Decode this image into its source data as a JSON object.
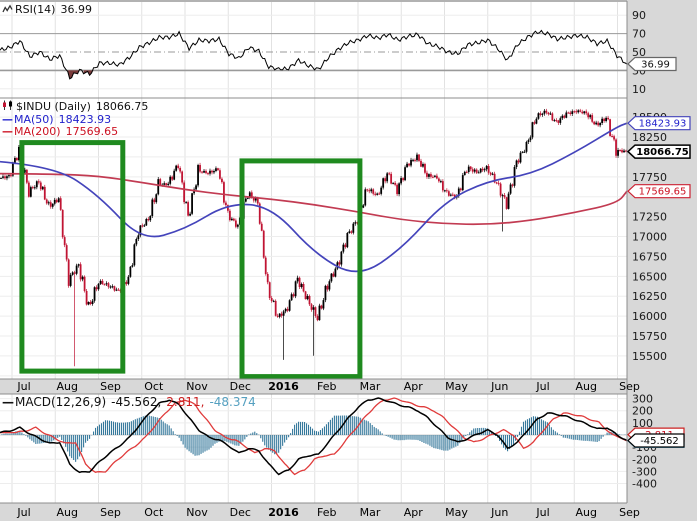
{
  "colors": {
    "page_bg": "#d8d8d8",
    "plot_bg": "#ffffff",
    "grid_v": "#e2e2e2",
    "grid_h": "#ededed",
    "grid_dark": "#9a9a9a",
    "border": "#8c8c8c",
    "candle_up": "#000000",
    "candle_down": "#c01433",
    "ma50": "#4444bb",
    "ma200": "#c23b52",
    "macd_line": "#000000",
    "macd_signal": "#e03b3b",
    "macd_hist": "#35789b",
    "rsi_line": "#000000",
    "rsi_fill": "#7a3b3b",
    "annotation_green": "#1f8a1f",
    "tick_text": "#1a1a1a"
  },
  "rsi_panel": {
    "label": "RSI(14)",
    "value": "36.99",
    "ticks": [
      90,
      70,
      50,
      30,
      10
    ],
    "overbought": 70,
    "oversold": 30,
    "midline": 50,
    "tag": "36.99"
  },
  "price_panel": {
    "title": "$INDU (Daily)",
    "last": "18066.75",
    "legend_dash": "—",
    "ma50_label": "MA(50)",
    "ma50_value": "18423.93",
    "ma200_label": "MA(200)",
    "ma200_value": "17569.65",
    "ticks": [
      18500,
      18250,
      17750,
      17250,
      17000,
      16750,
      16500,
      16250,
      16000,
      15750,
      15500
    ],
    "tags": {
      "last": "18066.75",
      "ma50": "18423.93",
      "ma200": "17569.65"
    }
  },
  "macd_panel": {
    "legend_dash": "—",
    "label": "MACD(12,26,9)",
    "line_value": "-45.562,",
    "hist_value": "2.811,",
    "signal_value": "-48.374",
    "ticks": [
      300,
      200,
      100,
      0,
      -100,
      -200,
      -300,
      -400
    ],
    "tags": {
      "line": "-45.562",
      "hist": "2.811",
      "signal": "-48.374"
    }
  },
  "x_axis": {
    "months": [
      "Jul",
      "Aug",
      "Sep",
      "Oct",
      "Nov",
      "Dec",
      "2016",
      "Feb",
      "Mar",
      "Apr",
      "May",
      "Jun",
      "Jul",
      "Aug",
      "Sep"
    ],
    "bold_label": "2016"
  },
  "chart_data": {
    "type": "candlestick+indicators",
    "symbol": "$INDU",
    "period": "Daily",
    "x_range": "Jul 2015 - Sep 2016",
    "price": {
      "ylim": [
        15210,
        18715
      ],
      "grid_step": 250,
      "last": 18066.75,
      "weekly_closes": [
        17730,
        17760,
        18086,
        17569,
        17690,
        17373,
        17477,
        16460,
        16643,
        16102,
        16433,
        16385,
        16315,
        16472,
        17084,
        17216,
        17647,
        17663,
        17910,
        17245,
        17824,
        17798,
        17848,
        17265,
        17128,
        17552,
        17425,
        16346,
        15988,
        16094,
        16466,
        16205,
        15974,
        16392,
        16640,
        17007,
        17213,
        17602,
        17516,
        17793,
        17577,
        17897,
        18004,
        17774,
        17741,
        17535,
        17501,
        17873,
        17807,
        17865,
        17675,
        17400,
        17930,
        18147,
        18517,
        18571,
        18432,
        18543,
        18576,
        18553,
        18395,
        18492,
        18085,
        18066.75
      ],
      "spike_lows": {
        "7": 15370,
        "28": 15450,
        "31": 15503,
        "50": 17063
      }
    },
    "ma50": {
      "period": 50,
      "last": 18423.93,
      "monthly": [
        17940,
        17880,
        17520,
        16940,
        17090,
        17420,
        17380,
        16780,
        16480,
        16840,
        17440,
        17700,
        17780,
        18050,
        18380,
        18423.93
      ]
    },
    "ma200": {
      "period": 200,
      "last": 17569.65,
      "monthly": [
        17790,
        17785,
        17760,
        17680,
        17590,
        17520,
        17470,
        17400,
        17310,
        17210,
        17160,
        17150,
        17200,
        17300,
        17420,
        17569.65
      ]
    },
    "rsi": {
      "period": 14,
      "last": 36.99,
      "ylim": [
        0,
        100
      ],
      "weekly": [
        52,
        55,
        62,
        45,
        50,
        42,
        46,
        22,
        30,
        26,
        38,
        38,
        36,
        44,
        55,
        60,
        66,
        66,
        70,
        54,
        63,
        62,
        64,
        48,
        43,
        55,
        51,
        34,
        31,
        32,
        41,
        35,
        31,
        44,
        53,
        60,
        63,
        68,
        65,
        69,
        63,
        67,
        69,
        59,
        56,
        50,
        48,
        58,
        60,
        63,
        54,
        41,
        58,
        66,
        72,
        70,
        64,
        66,
        68,
        66,
        59,
        62,
        46,
        36.99
      ]
    },
    "macd": {
      "params": [
        12,
        26,
        9
      ],
      "line_last": -45.562,
      "hist_last": 2.811,
      "signal_last": -48.374,
      "ylim": [
        -557,
        341
      ],
      "weekly": [
        20,
        35,
        60,
        10,
        -30,
        -70,
        -60,
        -240,
        -310,
        -300,
        -220,
        -150,
        -90,
        -20,
        80,
        180,
        260,
        290,
        250,
        140,
        40,
        -20,
        -40,
        -90,
        -150,
        -110,
        -130,
        -240,
        -320,
        -290,
        -200,
        -170,
        -160,
        -60,
        40,
        140,
        230,
        290,
        300,
        280,
        250,
        230,
        200,
        140,
        60,
        -20,
        -60,
        -30,
        10,
        40,
        0,
        -110,
        -60,
        40,
        130,
        180,
        170,
        150,
        120,
        90,
        50,
        60,
        0,
        -45.562
      ]
    },
    "annotations": {
      "color": "#1f8a1f",
      "rectangles": [
        {
          "x1_frac": 0.035,
          "x2_frac": 0.196,
          "price_top": 18180,
          "price_bottom": 15310
        },
        {
          "x1_frac": 0.386,
          "x2_frac": 0.574,
          "price_top": 17950,
          "price_bottom": 15240
        }
      ]
    }
  }
}
